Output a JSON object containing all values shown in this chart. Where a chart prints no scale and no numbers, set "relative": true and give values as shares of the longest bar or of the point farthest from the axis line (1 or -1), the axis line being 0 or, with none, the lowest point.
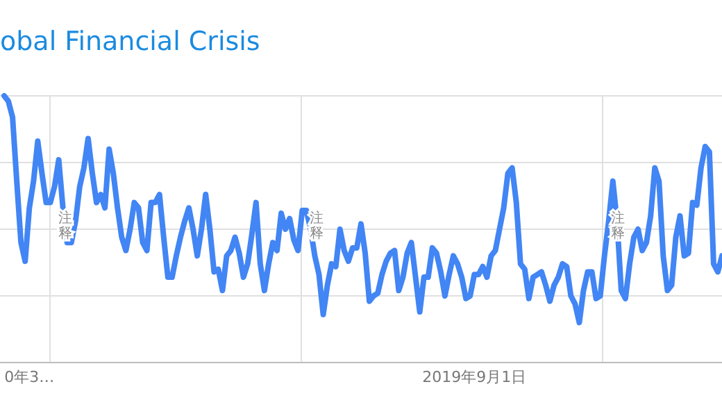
{
  "chart_data": {
    "type": "line",
    "title": "obal Financial Crisis",
    "relative": true,
    "grid": true,
    "legend": false,
    "marker": "none",
    "line_style": "solid",
    "categories": [
      null,
      null,
      null,
      null,
      null,
      null,
      "0年3…",
      null,
      null,
      null,
      null,
      null,
      null,
      null,
      null,
      null,
      null,
      null,
      null,
      null,
      null,
      null,
      null,
      null,
      null,
      null,
      null,
      null,
      null,
      null,
      null,
      null,
      null,
      null,
      null,
      null,
      null,
      null,
      null,
      null,
      null,
      null,
      null,
      null,
      null,
      null,
      null,
      null,
      null,
      null,
      null,
      null,
      null,
      null,
      null,
      null,
      null,
      null,
      null,
      null,
      null,
      null,
      null,
      null,
      null,
      null,
      null,
      null,
      null,
      null,
      null,
      null,
      null,
      null,
      null,
      null,
      null,
      null,
      null,
      null,
      null,
      null,
      null,
      null,
      null,
      null,
      null,
      null,
      null,
      null,
      null,
      null,
      null,
      null,
      null,
      null,
      null,
      null,
      null,
      null,
      null,
      null,
      null,
      null,
      null,
      null,
      null,
      null,
      null,
      null,
      null,
      null,
      "2019年9月1日",
      null,
      null,
      null,
      null,
      null,
      null,
      null,
      null,
      null,
      null,
      null,
      null,
      null,
      null,
      null,
      null,
      null,
      null,
      null,
      null,
      null,
      null,
      null,
      null,
      null,
      null,
      null,
      null,
      null,
      null,
      null,
      null,
      null,
      null,
      null,
      null,
      null,
      null,
      null,
      null,
      null,
      null,
      null,
      null,
      null,
      null,
      null,
      null,
      null,
      null,
      null,
      null,
      null,
      null,
      null,
      null,
      null,
      null,
      null
    ],
    "series": [
      {
        "color": "#4285f4",
        "values": [
          1.0,
          0.98,
          0.92,
          0.68,
          0.45,
          0.38,
          0.58,
          0.68,
          0.83,
          0.71,
          0.6,
          0.6,
          0.66,
          0.76,
          0.58,
          0.45,
          0.45,
          0.53,
          0.66,
          0.73,
          0.84,
          0.71,
          0.6,
          0.63,
          0.58,
          0.8,
          0.71,
          0.58,
          0.47,
          0.42,
          0.5,
          0.6,
          0.58,
          0.45,
          0.42,
          0.6,
          0.6,
          0.63,
          0.47,
          0.32,
          0.32,
          0.4,
          0.47,
          0.53,
          0.58,
          0.5,
          0.4,
          0.5,
          0.63,
          0.5,
          0.34,
          0.35,
          0.27,
          0.4,
          0.42,
          0.47,
          0.41,
          0.32,
          0.37,
          0.48,
          0.6,
          0.37,
          0.27,
          0.37,
          0.45,
          0.42,
          0.56,
          0.5,
          0.54,
          0.46,
          0.42,
          0.57,
          0.57,
          0.5,
          0.4,
          0.33,
          0.18,
          0.29,
          0.37,
          0.36,
          0.5,
          0.42,
          0.38,
          0.43,
          0.43,
          0.52,
          0.41,
          0.23,
          0.25,
          0.26,
          0.33,
          0.38,
          0.41,
          0.42,
          0.27,
          0.32,
          0.41,
          0.45,
          0.32,
          0.19,
          0.32,
          0.32,
          0.43,
          0.41,
          0.34,
          0.25,
          0.33,
          0.4,
          0.37,
          0.32,
          0.24,
          0.25,
          0.33,
          0.33,
          0.36,
          0.32,
          0.4,
          0.42,
          0.5,
          0.58,
          0.71,
          0.73,
          0.6,
          0.37,
          0.35,
          0.24,
          0.32,
          0.33,
          0.34,
          0.29,
          0.23,
          0.29,
          0.32,
          0.37,
          0.36,
          0.25,
          0.22,
          0.15,
          0.27,
          0.34,
          0.34,
          0.24,
          0.25,
          0.4,
          0.53,
          0.68,
          0.53,
          0.27,
          0.24,
          0.37,
          0.47,
          0.5,
          0.42,
          0.45,
          0.55,
          0.73,
          0.68,
          0.4,
          0.27,
          0.29,
          0.47,
          0.55,
          0.4,
          0.41,
          0.6,
          0.59,
          0.73,
          0.81,
          0.79,
          0.37,
          0.34,
          0.4
        ]
      }
    ],
    "annotations": [
      "注释",
      "注释",
      "注释"
    ]
  }
}
